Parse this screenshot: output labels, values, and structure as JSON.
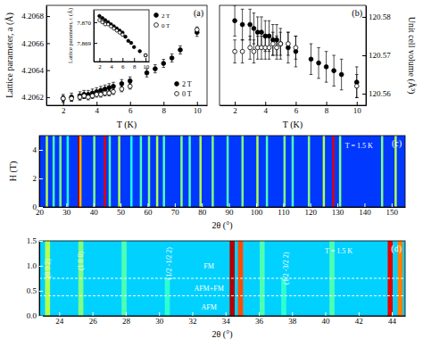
{
  "chart_data": [
    {
      "type": "scatter",
      "title": "(a)",
      "xlabel": "T (K)",
      "ylabel": "Lattice parameter, a (Å)",
      "xlim": [
        1,
        10.6
      ],
      "xticks": [
        2,
        4,
        6,
        8,
        10
      ],
      "ylim": [
        4.20614,
        4.20688
      ],
      "yticks": [
        4.2062,
        4.2064,
        4.2066,
        4.2068
      ],
      "legend": "lower-right",
      "series": [
        {
          "name": "2 T",
          "color": "#000000",
          "marker": "filled_circle",
          "x": [
            2,
            2.5,
            3,
            3.25,
            3.5,
            3.75,
            4,
            4.25,
            4.5,
            4.75,
            5,
            5.5,
            6,
            7,
            7.5,
            8,
            8.5,
            9,
            10
          ],
          "values": [
            4.20619,
            4.2062,
            4.20621,
            4.20622,
            4.20622,
            4.20623,
            4.20624,
            4.20625,
            4.20626,
            4.20627,
            4.20628,
            4.2063,
            4.20632,
            4.20638,
            4.20641,
            4.20645,
            4.20649,
            4.20655,
            4.20668
          ],
          "errors": [
            3e-05,
            3e-05,
            3e-05,
            3e-05,
            3e-05,
            3e-05,
            3e-05,
            3e-05,
            3e-05,
            3e-05,
            3e-05,
            3e-05,
            3e-05,
            3e-05,
            3e-05,
            3e-05,
            3e-05,
            3e-05,
            3e-05
          ]
        },
        {
          "name": "0 T",
          "color": "#000000",
          "marker": "open_circle",
          "x": [
            2,
            2.5,
            3,
            3.25,
            3.5,
            3.75,
            4,
            4.25,
            4.5,
            4.75,
            5,
            5.5,
            6,
            10
          ],
          "values": [
            4.20619,
            4.20619,
            4.2062,
            4.20621,
            4.2062,
            4.20621,
            4.20622,
            4.20622,
            4.20623,
            4.20623,
            4.20624,
            4.20626,
            4.20628,
            4.2067
          ],
          "errors": [
            2e-05,
            2e-05,
            2e-05,
            2e-05,
            2e-05,
            2e-05,
            2e-05,
            2e-05,
            2e-05,
            2e-05,
            2e-05,
            2e-05,
            2e-05,
            2e-05
          ]
        }
      ]
    },
    {
      "type": "scatter",
      "ylabel": "Lattice parameter, c (Å)",
      "xlim": [
        1,
        10.6
      ],
      "xticks": [
        2,
        4,
        6,
        8,
        10
      ],
      "ylim": [
        7.8681,
        7.8706
      ],
      "yticks": [
        7.869,
        {
          "value": 7.87,
          "label": "7.870"
        }
      ],
      "legend": "outside-right",
      "series": [
        {
          "name": "2 T",
          "color": "#000000",
          "marker": "filled_circle",
          "x": [
            2,
            2.5,
            3,
            3.5,
            4,
            4.5,
            5,
            5.5,
            6,
            6.5,
            7,
            7.5,
            8,
            9,
            10
          ],
          "values": [
            7.8703,
            7.8702,
            7.8701,
            7.87,
            7.8699,
            7.8698,
            7.8697,
            7.8696,
            7.8695,
            7.8693,
            7.8691,
            7.869,
            7.8688,
            7.8686,
            7.8684
          ]
        },
        {
          "name": "0 T",
          "color": "#000000",
          "marker": "open_circle",
          "x": [
            2,
            2.5,
            3,
            3.5,
            4,
            4.5,
            5,
            5.5,
            6,
            10
          ],
          "values": [
            7.8701,
            7.87,
            7.8699,
            7.8699,
            7.8698,
            7.8697,
            7.8696,
            7.8695,
            7.8694,
            7.8684
          ]
        }
      ]
    },
    {
      "type": "scatter",
      "title": "(b)",
      "xlabel": "T (K)",
      "y2label": "Unit cell volume (Å³)",
      "xlim": [
        1,
        10.6
      ],
      "xticks": [
        2,
        4,
        6,
        8,
        10
      ],
      "y2lim": [
        120.557,
        120.583
      ],
      "y2ticks": [
        120.56,
        120.57,
        120.58
      ],
      "series": [
        {
          "color": "#000000",
          "marker": "filled_circle",
          "axis": "y2",
          "x": [
            2,
            2.5,
            3,
            3.25,
            3.5,
            3.75,
            4,
            4.25,
            4.5,
            4.75,
            5,
            5.5,
            6,
            7,
            7.5,
            8,
            8.5,
            9,
            10
          ],
          "values": [
            120.579,
            120.578,
            120.578,
            120.577,
            120.576,
            120.576,
            120.575,
            120.575,
            120.574,
            120.574,
            120.573,
            120.572,
            120.571,
            120.569,
            120.568,
            120.567,
            120.566,
            120.565,
            120.563
          ],
          "errors": [
            0.004,
            0.004,
            0.004,
            0.004,
            0.004,
            0.004,
            0.004,
            0.004,
            0.004,
            0.004,
            0.004,
            0.004,
            0.004,
            0.004,
            0.004,
            0.004,
            0.004,
            0.004,
            0.004
          ]
        },
        {
          "color": "#000000",
          "marker": "open_circle",
          "axis": "y2",
          "x": [
            2,
            2.5,
            3,
            3.25,
            3.5,
            3.75,
            4,
            4.25,
            4.5,
            4.75,
            5,
            5.5,
            6,
            10
          ],
          "values": [
            120.571,
            120.571,
            120.572,
            120.571,
            120.572,
            120.572,
            120.572,
            120.572,
            120.573,
            120.572,
            120.573,
            120.573,
            120.572,
            120.562
          ],
          "errors": [
            0.003,
            0.003,
            0.003,
            0.003,
            0.003,
            0.003,
            0.003,
            0.003,
            0.003,
            0.003,
            0.003,
            0.003,
            0.003,
            0.003
          ]
        }
      ]
    },
    {
      "type": "heatmap",
      "title": "(c)",
      "xlabel": "2θ (°)",
      "ylabel": "H (T)",
      "xlim": [
        20,
        155
      ],
      "xticks": [
        20,
        30,
        40,
        50,
        60,
        70,
        80,
        90,
        100,
        110,
        120,
        130,
        140,
        150
      ],
      "ylim": [
        0,
        5
      ],
      "yticks": [
        0,
        2,
        4
      ],
      "zlim": [
        0,
        1
      ],
      "background": 0.18,
      "peaks": [
        {
          "x": 22.8,
          "intensity": 0.55
        },
        {
          "x": 25.3,
          "intensity": 0.45
        },
        {
          "x": 27.8,
          "intensity": 0.5
        },
        {
          "x": 30.5,
          "intensity": 0.4
        },
        {
          "x": 34.6,
          "intensity": 0.95
        },
        {
          "x": 35.2,
          "intensity": 0.7
        },
        {
          "x": 40.3,
          "intensity": 0.5
        },
        {
          "x": 44.2,
          "intensity": 0.9
        },
        {
          "x": 46,
          "intensity": 0.45
        },
        {
          "x": 49.5,
          "intensity": 0.55
        },
        {
          "x": 54,
          "intensity": 0.4
        },
        {
          "x": 57.5,
          "intensity": 0.45
        },
        {
          "x": 60.5,
          "intensity": 0.5
        },
        {
          "x": 63.5,
          "intensity": 0.55
        },
        {
          "x": 66,
          "intensity": 0.45
        },
        {
          "x": 72.5,
          "intensity": 0.5
        },
        {
          "x": 75.5,
          "intensity": 0.45
        },
        {
          "x": 79.5,
          "intensity": 0.55
        },
        {
          "x": 84,
          "intensity": 0.5
        },
        {
          "x": 89.5,
          "intensity": 0.45
        },
        {
          "x": 95,
          "intensity": 0.5
        },
        {
          "x": 100.5,
          "intensity": 0.55
        },
        {
          "x": 104,
          "intensity": 0.45
        },
        {
          "x": 110.5,
          "intensity": 0.5
        },
        {
          "x": 113.5,
          "intensity": 0.45
        },
        {
          "x": 119.5,
          "intensity": 0.5
        },
        {
          "x": 125,
          "intensity": 0.55
        },
        {
          "x": 128.5,
          "intensity": 0.9
        },
        {
          "x": 131,
          "intensity": 0.5
        },
        {
          "x": 146.5,
          "intensity": 0.5
        },
        {
          "x": 151.5,
          "intensity": 0.55
        }
      ],
      "annotations": [
        {
          "text": "T = 1.5 K",
          "x": 138,
          "y": 4.3
        }
      ]
    },
    {
      "type": "heatmap",
      "title": "(d)",
      "xlabel": "2θ (°)",
      "xlim": [
        22.8,
        44.8
      ],
      "xticks": [
        24,
        26,
        28,
        30,
        32,
        34,
        36,
        38,
        40,
        42,
        44
      ],
      "ylim": [
        0,
        1.5
      ],
      "yticks": [
        {
          "value": 0,
          "label": "0.0"
        },
        0.5,
        {
          "value": 1,
          "label": "1.0"
        },
        1.5
      ],
      "zlim": [
        0,
        1
      ],
      "background": 0.33,
      "peaks": [
        {
          "x": 23.3,
          "intensity": 0.55
        },
        {
          "x": 25.3,
          "intensity": 0.5
        },
        {
          "x": 27.9,
          "intensity": 0.45
        },
        {
          "x": 30.5,
          "intensity": 0.42,
          "h_range": [
            0,
            0.75
          ]
        },
        {
          "x": 34.4,
          "intensity": 0.95
        },
        {
          "x": 34.9,
          "intensity": 0.8
        },
        {
          "x": 36.2,
          "intensity": 0.45
        },
        {
          "x": 37.5,
          "intensity": 0.42,
          "h_range": [
            0,
            0.75
          ]
        },
        {
          "x": 40.4,
          "intensity": 0.45
        },
        {
          "x": 43.9,
          "intensity": 0.9
        },
        {
          "x": 44.5,
          "intensity": 0.75
        }
      ],
      "phase_boundaries": [
        0.4,
        0.75
      ],
      "annotations": [
        {
          "text": "(0 0 2)",
          "x": 23.3,
          "y": 0.95
        },
        {
          "text": "(1 0 0)",
          "x": 25.3,
          "y": 1.1
        },
        {
          "text": "(1/2 -1/2 2)",
          "x": 30.6,
          "y": 1.05
        },
        {
          "text": "(1/2 -3/2 2)",
          "x": 37.6,
          "y": 0.95
        },
        {
          "text": "FM",
          "x": 33,
          "y": 1.0
        },
        {
          "text": "AFM+FM",
          "x": 33,
          "y": 0.55
        },
        {
          "text": "AFM",
          "x": 33,
          "y": 0.18
        },
        {
          "text": "T = 1.5 K",
          "x": 40.8,
          "y": 1.3
        }
      ]
    }
  ]
}
